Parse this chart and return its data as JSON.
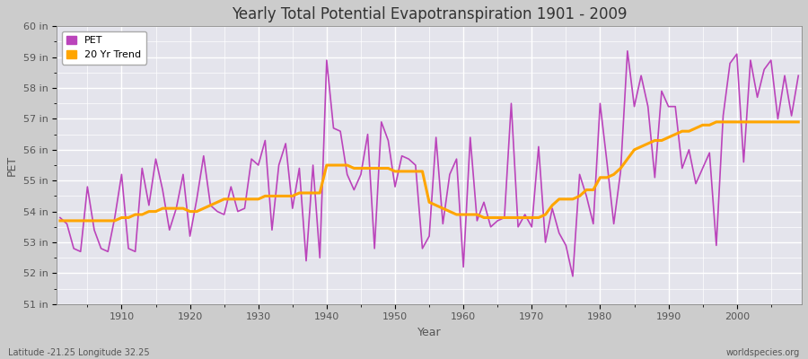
{
  "title": "Yearly Total Potential Evapotranspiration 1901 - 2009",
  "xlabel": "Year",
  "ylabel": "PET",
  "subtitle_left": "Latitude -21.25 Longitude 32.25",
  "subtitle_right": "worldspecies.org",
  "ylim": [
    51,
    60
  ],
  "yticks": [
    51,
    52,
    53,
    54,
    55,
    56,
    57,
    58,
    59,
    60
  ],
  "ytick_labels": [
    "51 in",
    "52 in",
    "53 in",
    "54 in",
    "55 in",
    "56 in",
    "57 in",
    "58 in",
    "59 in",
    "60 in"
  ],
  "xticks": [
    1910,
    1920,
    1930,
    1940,
    1950,
    1960,
    1970,
    1980,
    1990,
    2000
  ],
  "pet_color": "#BB44BB",
  "trend_color": "#FFA500",
  "fig_bg_color": "#D8D8D8",
  "plot_bg_color": "#E8E8F0",
  "legend_entries": [
    "PET",
    "20 Yr Trend"
  ],
  "years": [
    1901,
    1902,
    1903,
    1904,
    1905,
    1906,
    1907,
    1908,
    1909,
    1910,
    1911,
    1912,
    1913,
    1914,
    1915,
    1916,
    1917,
    1918,
    1919,
    1920,
    1921,
    1922,
    1923,
    1924,
    1925,
    1926,
    1927,
    1928,
    1929,
    1930,
    1931,
    1932,
    1933,
    1934,
    1935,
    1936,
    1937,
    1938,
    1939,
    1940,
    1941,
    1942,
    1943,
    1944,
    1945,
    1946,
    1947,
    1948,
    1949,
    1950,
    1951,
    1952,
    1953,
    1954,
    1955,
    1956,
    1957,
    1958,
    1959,
    1960,
    1961,
    1962,
    1963,
    1964,
    1965,
    1966,
    1967,
    1968,
    1969,
    1970,
    1971,
    1972,
    1973,
    1974,
    1975,
    1976,
    1977,
    1978,
    1979,
    1980,
    1981,
    1982,
    1983,
    1984,
    1985,
    1986,
    1987,
    1988,
    1989,
    1990,
    1991,
    1992,
    1993,
    1994,
    1995,
    1996,
    1997,
    1998,
    1999,
    2000,
    2001,
    2002,
    2003,
    2004,
    2005,
    2006,
    2007,
    2008,
    2009
  ],
  "pet_values": [
    53.8,
    53.6,
    52.8,
    52.7,
    54.8,
    53.4,
    52.8,
    52.7,
    53.8,
    55.2,
    52.8,
    52.7,
    55.4,
    54.2,
    55.7,
    54.7,
    53.4,
    54.1,
    55.2,
    53.2,
    54.4,
    55.8,
    54.2,
    54.0,
    53.9,
    54.8,
    54.0,
    54.1,
    55.7,
    55.5,
    56.3,
    53.4,
    55.5,
    56.2,
    54.1,
    55.4,
    52.4,
    55.5,
    52.5,
    58.9,
    56.7,
    56.6,
    55.2,
    54.7,
    55.2,
    56.5,
    52.8,
    56.9,
    56.3,
    54.8,
    55.8,
    55.7,
    55.5,
    52.8,
    53.2,
    56.4,
    53.6,
    55.2,
    55.7,
    52.2,
    56.4,
    53.7,
    54.3,
    53.5,
    53.7,
    53.8,
    57.5,
    53.5,
    53.9,
    53.5,
    56.1,
    53.0,
    54.1,
    53.3,
    52.9,
    51.9,
    55.2,
    54.5,
    53.6,
    57.5,
    55.6,
    53.6,
    55.3,
    59.2,
    57.4,
    58.4,
    57.4,
    55.1,
    57.9,
    57.4,
    57.4,
    55.4,
    56.0,
    54.9,
    55.4,
    55.9,
    52.9,
    57.1,
    58.8,
    59.1,
    55.6,
    58.9,
    57.7,
    58.6,
    58.9,
    57.0,
    58.4,
    57.1,
    58.4
  ],
  "trend_values": [
    53.7,
    53.7,
    53.7,
    53.7,
    53.7,
    53.7,
    53.7,
    53.7,
    53.7,
    53.8,
    53.8,
    53.9,
    53.9,
    54.0,
    54.0,
    54.1,
    54.1,
    54.1,
    54.1,
    54.0,
    54.0,
    54.1,
    54.2,
    54.3,
    54.4,
    54.4,
    54.4,
    54.4,
    54.4,
    54.4,
    54.5,
    54.5,
    54.5,
    54.5,
    54.5,
    54.6,
    54.6,
    54.6,
    54.6,
    55.5,
    55.5,
    55.5,
    55.5,
    55.4,
    55.4,
    55.4,
    55.4,
    55.4,
    55.4,
    55.3,
    55.3,
    55.3,
    55.3,
    55.3,
    54.3,
    54.2,
    54.1,
    54.0,
    53.9,
    53.9,
    53.9,
    53.9,
    53.8,
    53.8,
    53.8,
    53.8,
    53.8,
    53.8,
    53.8,
    53.8,
    53.8,
    53.9,
    54.2,
    54.4,
    54.4,
    54.4,
    54.5,
    54.7,
    54.7,
    55.1,
    55.1,
    55.2,
    55.4,
    55.7,
    56.0,
    56.1,
    56.2,
    56.3,
    56.3,
    56.4,
    56.5,
    56.6,
    56.6,
    56.7,
    56.8,
    56.8,
    56.9,
    56.9,
    56.9,
    56.9,
    56.9,
    56.9,
    56.9,
    56.9,
    56.9,
    56.9,
    56.9,
    56.9,
    56.9
  ]
}
